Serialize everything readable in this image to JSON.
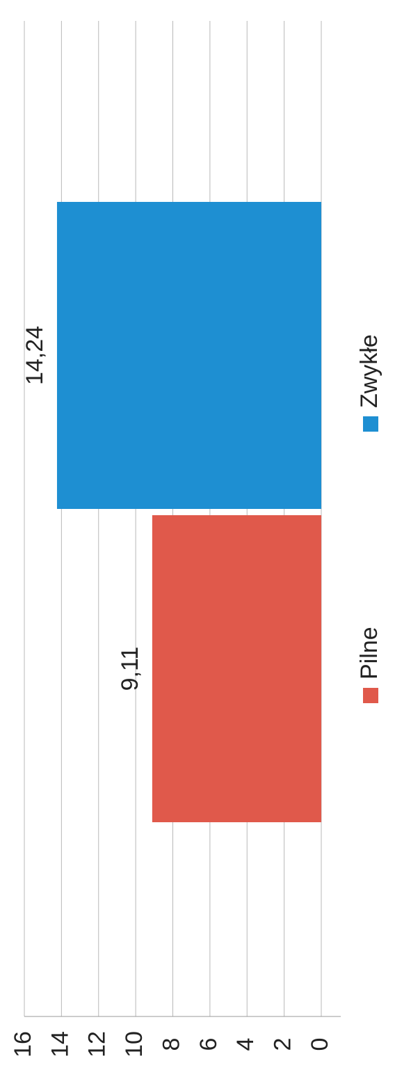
{
  "chart_data": {
    "type": "bar",
    "rotated": true,
    "categories": [
      null
    ],
    "series": [
      {
        "name": "Pilne",
        "color": "#e0594b",
        "values": [
          9.11
        ],
        "value_labels": [
          "9,11"
        ]
      },
      {
        "name": "Zwykłe",
        "color": "#1e8fd2",
        "values": [
          14.24
        ],
        "value_labels": [
          "14,24"
        ]
      }
    ],
    "ylim": [
      0,
      16
    ],
    "yticks": [
      0,
      2,
      4,
      6,
      8,
      10,
      12,
      14,
      16
    ],
    "grid": true,
    "legend": "bottom"
  }
}
